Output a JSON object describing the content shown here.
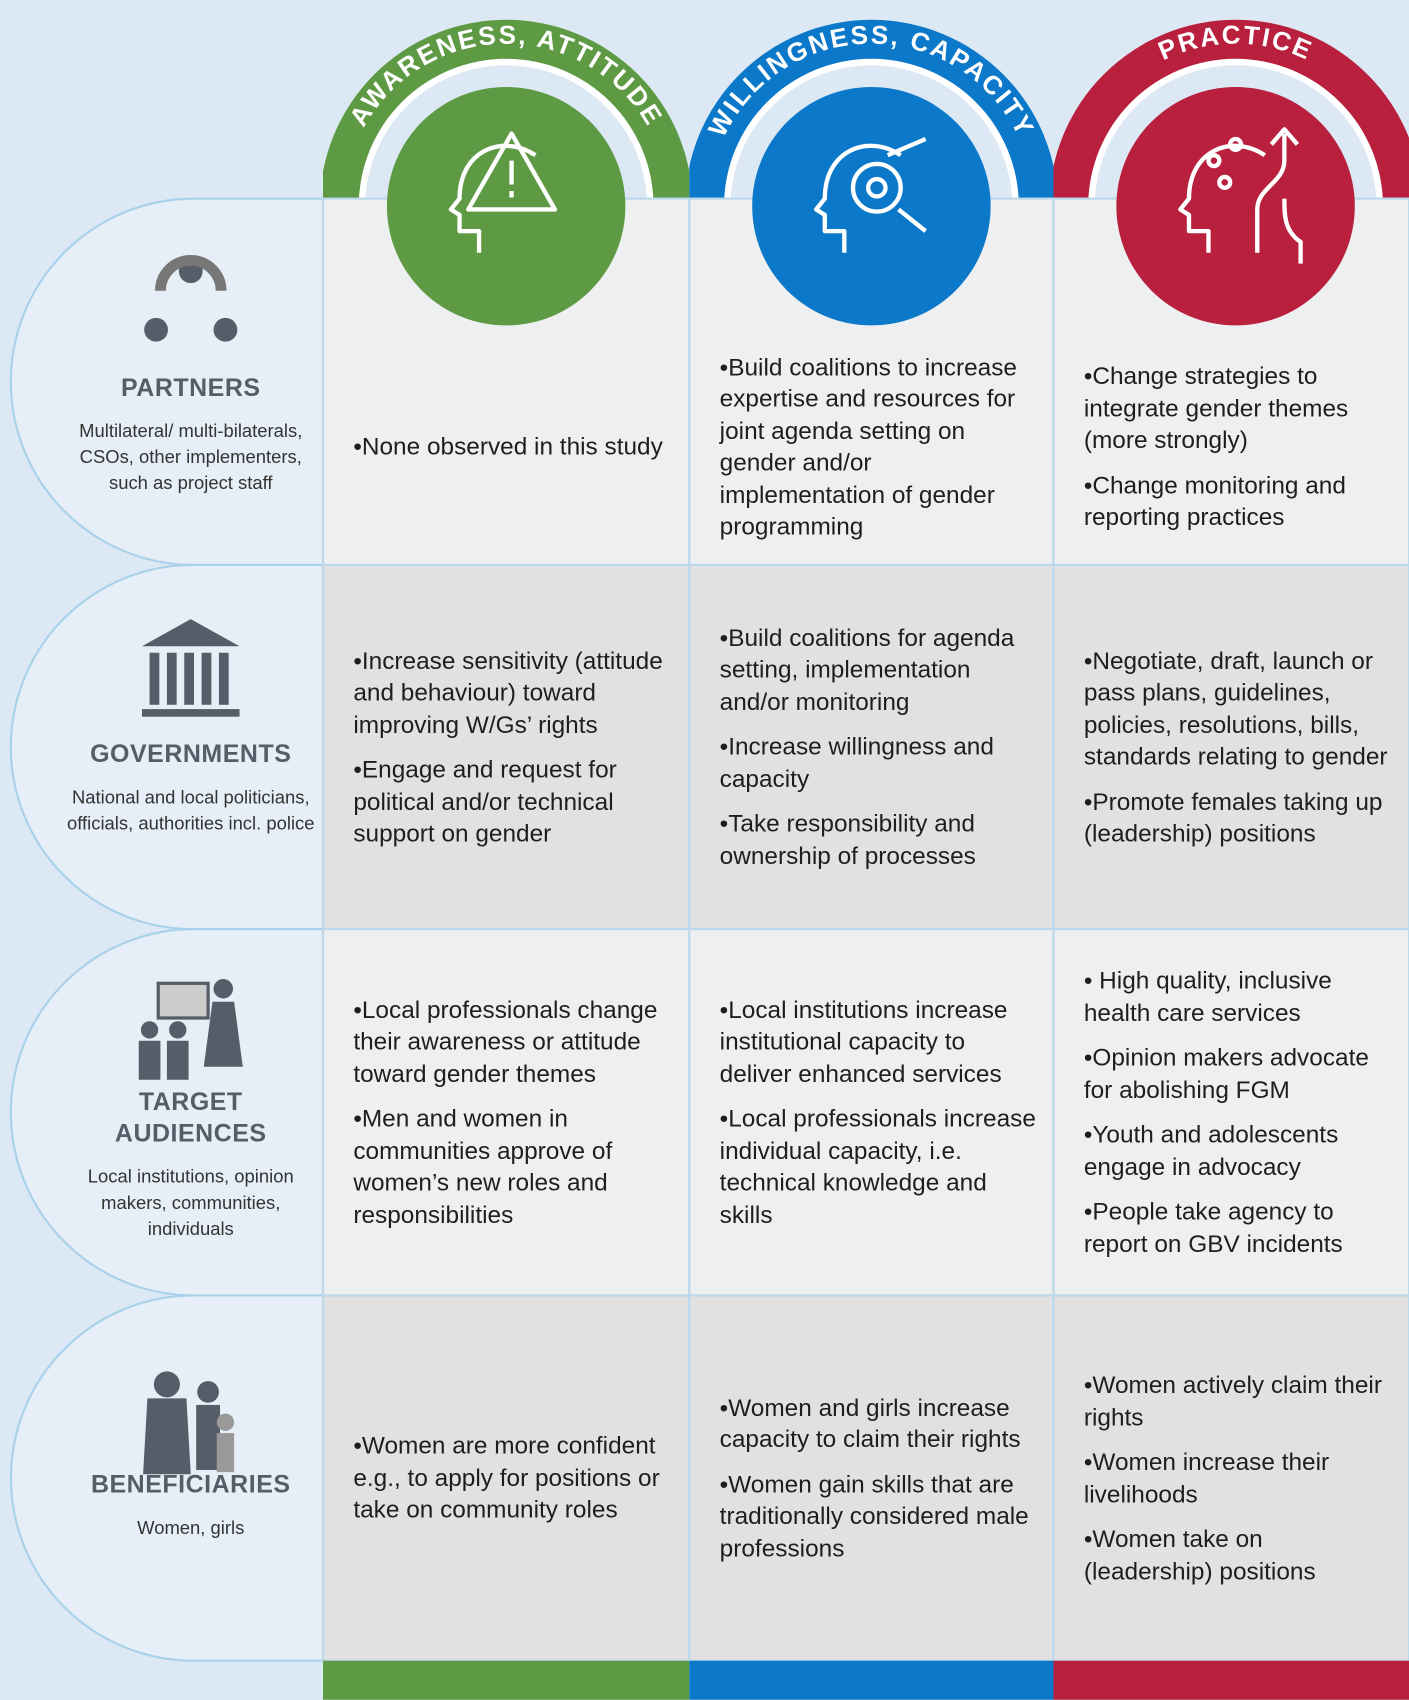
{
  "columns": [
    {
      "title": "AWARENESS, ATTITUDE"
    },
    {
      "title": "WILLINGNESS, CAPACITY"
    },
    {
      "title": "PRACTICE"
    }
  ],
  "rows": [
    {
      "title": "PARTNERS",
      "description": "Multilateral/ multi-bilaterals, CSOs, other implementers, such as project staff",
      "cells": [
        [
          "•None observed in this study"
        ],
        [
          "•Build coalitions to increase expertise and resources for joint agenda setting on gender and/or implementation of gender programming"
        ],
        [
          "•Change strategies to integrate gender themes (more strongly)",
          "•Change monitoring and reporting practices"
        ]
      ]
    },
    {
      "title": "GOVERNMENTS",
      "description": "National and local politicians, officials, authorities incl. police",
      "cells": [
        [
          "•Increase sensitivity (attitude and behaviour) toward improving W/Gs’ rights",
          "•Engage and request for political and/or technical support on gender"
        ],
        [
          "•Build coalitions for agenda setting, implementation and/or monitoring",
          "•Increase willingness and capacity",
          "•Take responsibility and ownership of processes"
        ],
        [
          "•Negotiate, draft, launch or pass plans, guidelines, policies, resolutions, bills, standards relating to gender",
          "•Promote females taking up (leadership) positions"
        ]
      ]
    },
    {
      "title": "TARGET AUDIENCES",
      "description": "Local institutions, opinion makers, communities, individuals",
      "cells": [
        [
          "•Local professionals change their awareness or attitude toward gender themes",
          "•Men and women in communities approve of women’s new roles and responsibilities"
        ],
        [
          "•Local institutions increase institutional capacity to deliver enhanced services",
          "•Local professionals increase individual capacity, i.e. technical knowledge and skills"
        ],
        [
          "• High quality, inclusive health care services",
          "•Opinion makers advocate for abolishing FGM",
          "•Youth and adolescents engage in advocacy",
          "•People take agency to report on GBV incidents"
        ]
      ]
    },
    {
      "title": "BENEFICIARIES",
      "description": "Women, girls",
      "cells": [
        [
          "•Women are more confident e.g., to apply for positions or take on community roles"
        ],
        [
          "•Women and girls increase capacity to claim their rights",
          "•Women gain skills that are traditionally considered male professions"
        ],
        [
          "•Women actively claim their rights",
          "•Women increase their livelihoods",
          "•Women take on (leadership) positions"
        ]
      ]
    }
  ]
}
